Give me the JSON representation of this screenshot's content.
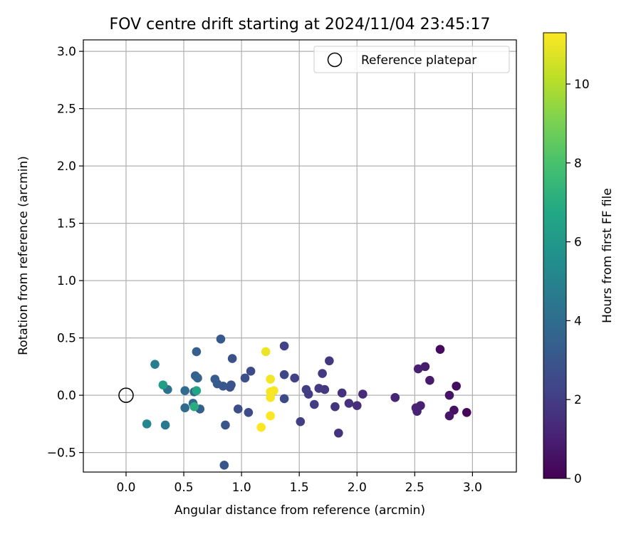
{
  "chart_data": {
    "type": "scatter",
    "title": "FOV centre drift starting at 2024/11/04 23:45:17",
    "xlabel": "Angular distance from reference (arcmin)",
    "ylabel": "Rotation from reference (arcmin)",
    "xlim": [
      -0.37,
      3.38
    ],
    "ylim": [
      -0.67,
      3.1
    ],
    "xticks": [
      0.0,
      0.5,
      1.0,
      1.5,
      2.0,
      2.5,
      3.0
    ],
    "xtick_labels": [
      "0.0",
      "0.5",
      "1.0",
      "1.5",
      "2.0",
      "2.5",
      "3.0"
    ],
    "yticks": [
      -0.5,
      0.0,
      0.5,
      1.0,
      1.5,
      2.0,
      2.5,
      3.0
    ],
    "ytick_labels": [
      "−0.5",
      "0.0",
      "0.5",
      "1.0",
      "1.5",
      "2.0",
      "2.5",
      "3.0"
    ],
    "grid": true,
    "legend": {
      "position": "top-right",
      "entries": [
        "Reference platepar"
      ]
    },
    "reference_point": {
      "x": 0.0,
      "y": 0.0
    },
    "colorbar": {
      "label": "Hours from first FF file",
      "colormap": "viridis",
      "range": [
        0,
        11.3
      ],
      "ticks": [
        0,
        2,
        4,
        6,
        8,
        10
      ],
      "tick_labels": [
        "0",
        "2",
        "4",
        "6",
        "8",
        "10"
      ]
    },
    "series": [
      {
        "points": [
          {
            "x": 2.72,
            "y": 0.4,
            "h": 0.3
          },
          {
            "x": 2.95,
            "y": -0.15,
            "h": 0.2
          },
          {
            "x": 2.86,
            "y": 0.08,
            "h": 0.4
          },
          {
            "x": 2.84,
            "y": -0.13,
            "h": 0.5
          },
          {
            "x": 2.8,
            "y": 0.0,
            "h": 0.6
          },
          {
            "x": 2.8,
            "y": -0.18,
            "h": 0.7
          },
          {
            "x": 2.63,
            "y": 0.13,
            "h": 0.8
          },
          {
            "x": 2.59,
            "y": 0.25,
            "h": 0.9
          },
          {
            "x": 2.53,
            "y": 0.23,
            "h": 1.0
          },
          {
            "x": 2.55,
            "y": -0.09,
            "h": 1.0
          },
          {
            "x": 2.51,
            "y": -0.11,
            "h": 1.1
          },
          {
            "x": 2.52,
            "y": -0.14,
            "h": 1.1
          },
          {
            "x": 2.33,
            "y": -0.02,
            "h": 1.2
          },
          {
            "x": 2.05,
            "y": 0.01,
            "h": 1.4
          },
          {
            "x": 2.0,
            "y": -0.09,
            "h": 1.5
          },
          {
            "x": 1.93,
            "y": -0.07,
            "h": 1.6
          },
          {
            "x": 1.87,
            "y": 0.02,
            "h": 1.6
          },
          {
            "x": 1.84,
            "y": -0.33,
            "h": 1.7
          },
          {
            "x": 1.81,
            "y": -0.1,
            "h": 1.7
          },
          {
            "x": 1.76,
            "y": 0.3,
            "h": 1.8
          },
          {
            "x": 1.72,
            "y": 0.05,
            "h": 1.8
          },
          {
            "x": 1.7,
            "y": 0.19,
            "h": 1.9
          },
          {
            "x": 1.67,
            "y": 0.06,
            "h": 1.9
          },
          {
            "x": 1.63,
            "y": -0.08,
            "h": 2.0
          },
          {
            "x": 1.58,
            "y": 0.01,
            "h": 2.0
          },
          {
            "x": 1.56,
            "y": 0.05,
            "h": 2.1
          },
          {
            "x": 1.51,
            "y": -0.23,
            "h": 2.1
          },
          {
            "x": 1.46,
            "y": 0.15,
            "h": 2.2
          },
          {
            "x": 1.37,
            "y": 0.43,
            "h": 2.3
          },
          {
            "x": 1.37,
            "y": 0.18,
            "h": 2.4
          },
          {
            "x": 1.37,
            "y": -0.03,
            "h": 2.5
          },
          {
            "x": 1.08,
            "y": 0.21,
            "h": 2.6
          },
          {
            "x": 1.06,
            "y": -0.15,
            "h": 2.6
          },
          {
            "x": 1.03,
            "y": 0.15,
            "h": 2.7
          },
          {
            "x": 0.97,
            "y": -0.12,
            "h": 2.7
          },
          {
            "x": 0.92,
            "y": 0.32,
            "h": 2.8
          },
          {
            "x": 0.91,
            "y": 0.09,
            "h": 2.9
          },
          {
            "x": 0.9,
            "y": 0.07,
            "h": 2.9
          },
          {
            "x": 0.86,
            "y": -0.26,
            "h": 3.0
          },
          {
            "x": 0.85,
            "y": -0.61,
            "h": 3.0
          },
          {
            "x": 0.84,
            "y": 0.08,
            "h": 3.1
          },
          {
            "x": 0.82,
            "y": 0.49,
            "h": 3.2
          },
          {
            "x": 0.79,
            "y": 0.1,
            "h": 3.2
          },
          {
            "x": 0.77,
            "y": 0.14,
            "h": 3.3
          },
          {
            "x": 0.61,
            "y": 0.38,
            "h": 3.4
          },
          {
            "x": 0.64,
            "y": -0.12,
            "h": 3.5
          },
          {
            "x": 0.6,
            "y": 0.17,
            "h": 3.5
          },
          {
            "x": 0.62,
            "y": 0.15,
            "h": 3.6
          },
          {
            "x": 0.59,
            "y": 0.03,
            "h": 3.7
          },
          {
            "x": 0.58,
            "y": -0.07,
            "h": 3.8
          },
          {
            "x": 0.51,
            "y": -0.11,
            "h": 3.9
          },
          {
            "x": 0.51,
            "y": 0.04,
            "h": 4.0
          },
          {
            "x": 0.36,
            "y": 0.05,
            "h": 4.2
          },
          {
            "x": 0.34,
            "y": -0.26,
            "h": 4.5
          },
          {
            "x": 0.25,
            "y": 0.27,
            "h": 4.8
          },
          {
            "x": 0.18,
            "y": -0.25,
            "h": 5.2
          },
          {
            "x": 0.32,
            "y": 0.09,
            "h": 6.3
          },
          {
            "x": 0.61,
            "y": 0.04,
            "h": 6.6
          },
          {
            "x": 0.59,
            "y": -0.1,
            "h": 7.0
          },
          {
            "x": 1.21,
            "y": 0.38,
            "h": 11.0
          },
          {
            "x": 1.25,
            "y": 0.14,
            "h": 11.1
          },
          {
            "x": 1.25,
            "y": 0.03,
            "h": 11.1
          },
          {
            "x": 1.28,
            "y": 0.04,
            "h": 11.2
          },
          {
            "x": 1.25,
            "y": -0.02,
            "h": 11.2
          },
          {
            "x": 1.25,
            "y": -0.18,
            "h": 11.3
          },
          {
            "x": 1.17,
            "y": -0.28,
            "h": 11.3
          }
        ]
      }
    ]
  }
}
